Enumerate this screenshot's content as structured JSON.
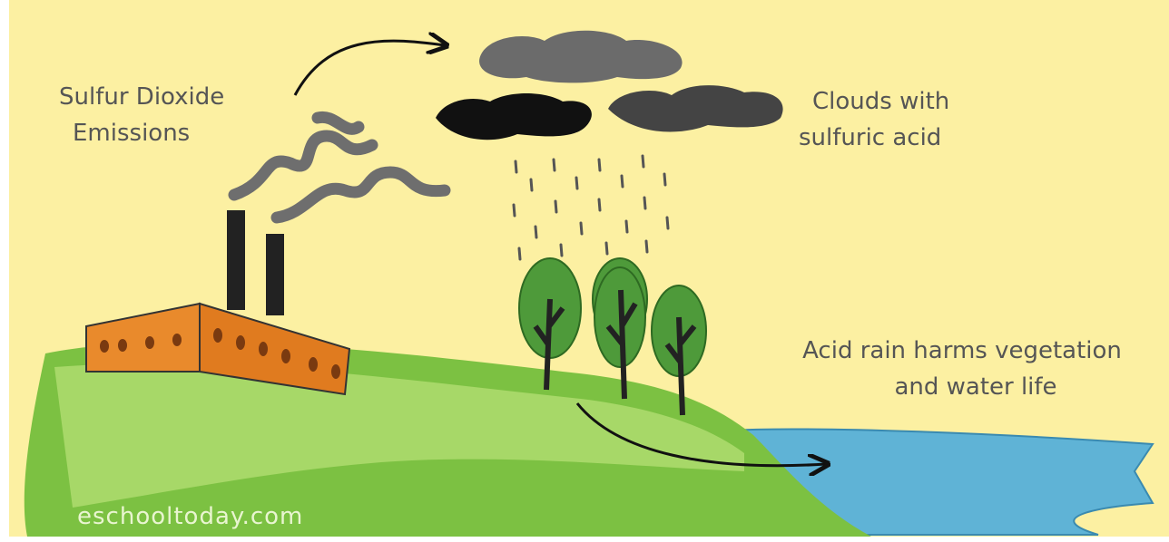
{
  "labels": {
    "emissions": [
      "Sulfur Dioxide",
      "Emissions"
    ],
    "clouds": [
      "Clouds with",
      "sulfuric acid"
    ],
    "effect": [
      "Acid rain harms vegetation",
      "and water life"
    ]
  },
  "watermark": "eschooltoday.com"
}
